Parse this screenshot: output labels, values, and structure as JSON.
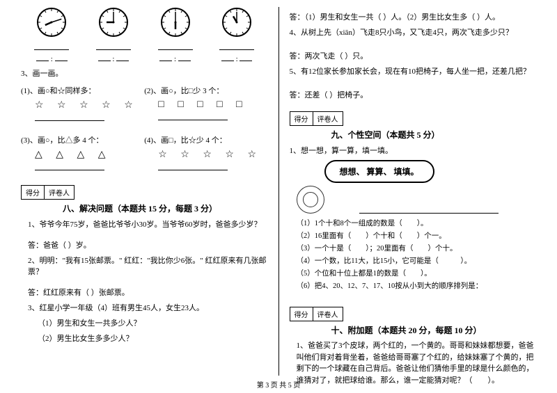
{
  "footer": "第 3 页 共 5 页",
  "left": {
    "clock_blank": "________",
    "q3_title": "3、画一画。",
    "sub1_label": "(1)、画○和☆同样多：",
    "sub1_shapes": "☆ ☆ ☆ ☆ ☆",
    "sub2_label": "(2)、画○，比□少 3 个：",
    "sub2_shapes": "□ □ □ □ □",
    "sub3_label": "(3)、画○，比△多 4 个：",
    "sub3_shapes": "△ △ △ △",
    "sub4_label": "(4)、画□，比☆少 4 个：",
    "sub4_shapes": "☆ ☆ ☆ ☆ ☆",
    "score_label1": "得分",
    "score_label2": "评卷人",
    "section8_title": "八、解决问题（本题共 15 分，每题 3 分）",
    "q8_1": "1、爷爷今年75岁，爸爸比爷爷小30岁。当爷爷60岁时，爸爸多少岁？",
    "q8_1_ans": "答：爸爸（ ）岁。",
    "q8_2": "2、明明：\"我有15张邮票。\" 红红：\"我比你少6张。\" 红红原来有几张邮票？",
    "q8_2_ans": "答：红红原来有（  ）张邮票。",
    "q8_3": "3、红星小学一年级（4）班有男生45人，女生23人。",
    "q8_3a": "（1）男生和女生一共多少人？",
    "q8_3b": "（2）男生比女生多多少人？"
  },
  "right": {
    "q8_3_ans": "答：（1）男生和女生一共（  ）人。（2）男生比女生多（  ）人。",
    "q8_4": "4、从树上先（xiān）飞走8只小鸟，又飞走4只，两次飞走多少只？",
    "q8_4_ans": "答：两次飞走（  ）只。",
    "q8_5": "5、有12位家长参加家长会，现在有10把椅子，每人坐一把，还差几把？",
    "q8_5_ans": "答：还差（  ）把椅子。",
    "score_label1": "得分",
    "score_label2": "评卷人",
    "section9_title": "九、个性空间（本题共 5 分）",
    "q9_1": "1、想一想，算一算，填一填。",
    "bubble": "想想、 算算、 填填。",
    "fill1": "（1）1个十和8个一组成的数是（　　）。",
    "fill2": "（2）16里面有（　　）个十和（　　）个一。",
    "fill3": "（3）一个十是（　　）；20里面有（　　）个十。",
    "fill4": "（4）一个数，比11大，比15小，它可能是（　　　）。",
    "fill5": "（5）个位和十位上都是1的数是（　　）。",
    "fill6": "（6）把4、20、12、7、17、10按从小到大的顺序排列是：",
    "section10_title": "十、附加题（本题共 20 分，每题 10 分）",
    "q10_1": "1、爸爸买了3个皮球，两个红的，一个黄的。哥哥和妹妹都想要，爸爸叫他们背对着背坐着，爸爸给哥哥塞了个红的，给妹妹塞了个黄的，把剩下的一个球藏在自己背后。爸爸让他们猜他手里的球是什么颜色的，谁猜对了，就把球给谁。那么，谁一定能猜对呢？（　　）。"
  },
  "clocks": [
    {
      "h": 8,
      "m": 12
    },
    {
      "h": 9,
      "m": 0
    },
    {
      "h": 6,
      "m": 0
    },
    {
      "h": 11,
      "m": 0
    }
  ]
}
